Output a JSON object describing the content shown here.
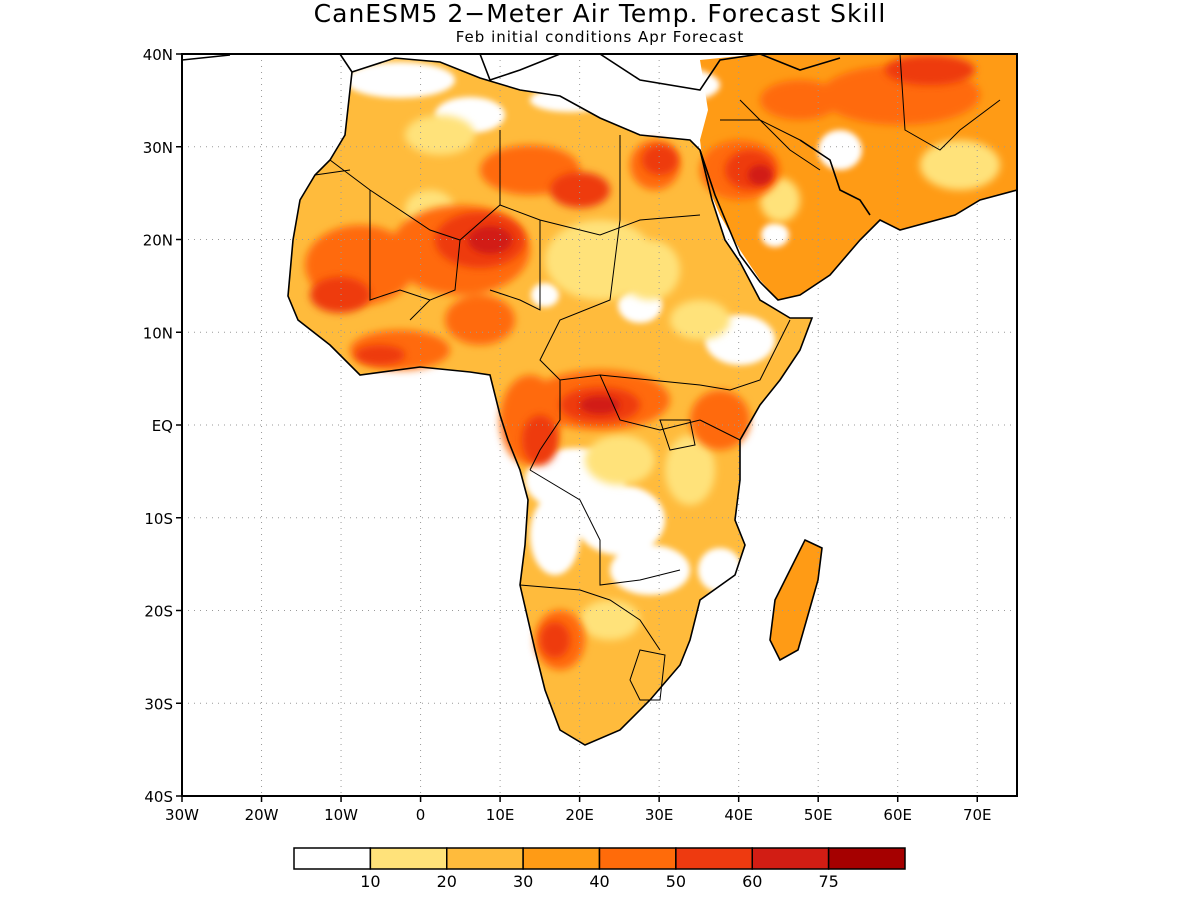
{
  "figure": {
    "title": "CanESM5 2−Meter Air Temp. Forecast Skill",
    "subtitle": "Feb initial conditions  Apr Forecast"
  },
  "map": {
    "lon_range": [
      -30,
      75
    ],
    "lat_range": [
      -40,
      40
    ],
    "lat_ticks": [
      {
        "value": 40,
        "label": "40N"
      },
      {
        "value": 30,
        "label": "30N"
      },
      {
        "value": 20,
        "label": "20N"
      },
      {
        "value": 10,
        "label": "10N"
      },
      {
        "value": 0,
        "label": "EQ"
      },
      {
        "value": -10,
        "label": "10S"
      },
      {
        "value": -20,
        "label": "20S"
      },
      {
        "value": -30,
        "label": "30S"
      },
      {
        "value": -40,
        "label": "40S"
      }
    ],
    "lon_ticks": [
      {
        "value": -30,
        "label": "30W"
      },
      {
        "value": -20,
        "label": "20W"
      },
      {
        "value": -10,
        "label": "10W"
      },
      {
        "value": 0,
        "label": "0"
      },
      {
        "value": 10,
        "label": "10E"
      },
      {
        "value": 20,
        "label": "20E"
      },
      {
        "value": 30,
        "label": "30E"
      },
      {
        "value": 40,
        "label": "40E"
      },
      {
        "value": 50,
        "label": "50E"
      },
      {
        "value": 60,
        "label": "60E"
      },
      {
        "value": 70,
        "label": "70E"
      }
    ],
    "grid": true
  },
  "colorbar": {
    "colors": [
      "#ffffff",
      "#ffe27a",
      "#ffbb3c",
      "#ff9b15",
      "#ff6b0a",
      "#ee3a10",
      "#d21d14",
      "#a50000"
    ],
    "labels": [
      "10",
      "20",
      "30",
      "40",
      "50",
      "60",
      "75"
    ]
  }
}
